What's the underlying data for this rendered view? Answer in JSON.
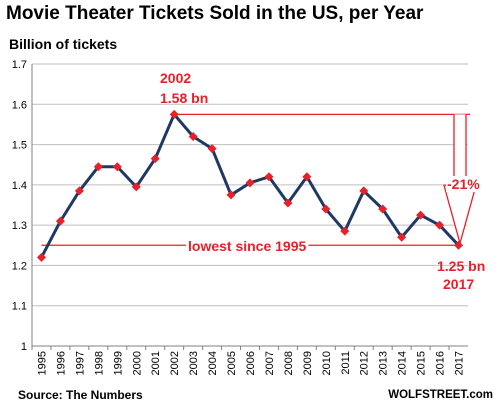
{
  "title": "Movie Theater Tickets Sold in the US, per Year",
  "ylabel": "Billion of tickets",
  "source": "Source: The Numbers",
  "brand": "WOLFSTREET.com",
  "colors": {
    "line": "#1f3864",
    "marker": "#e8202a",
    "annotation": "#e8202a",
    "grid": "#bfbfbf"
  },
  "annotations": {
    "peak_year": "2002",
    "peak_value": "1.58 bn",
    "low_text": "lowest since 1995",
    "end_value": "1.25 bn",
    "end_year": "2017",
    "change": "-21%"
  },
  "chart_data": {
    "type": "line",
    "title": "Movie Theater Tickets Sold in the US, per Year",
    "ylabel": "Billion of tickets",
    "xlabel": "",
    "ylim": [
      1,
      1.7
    ],
    "yticks": [
      "1",
      "1.1",
      "1.2",
      "1.3",
      "1.4",
      "1.5",
      "1.6",
      "1.7"
    ],
    "grid": true,
    "categories": [
      "1995",
      "1996",
      "1997",
      "1998",
      "1999",
      "2000",
      "2001",
      "2002",
      "2003",
      "2004",
      "2005",
      "2006",
      "2007",
      "2008",
      "2009",
      "2010",
      "2011",
      "2012",
      "2013",
      "2014",
      "2015",
      "2016",
      "2017"
    ],
    "values": [
      1.22,
      1.31,
      1.385,
      1.445,
      1.445,
      1.395,
      1.465,
      1.575,
      1.52,
      1.49,
      1.375,
      1.405,
      1.42,
      1.355,
      1.42,
      1.34,
      1.285,
      1.385,
      1.34,
      1.27,
      1.325,
      1.3,
      1.25
    ]
  }
}
